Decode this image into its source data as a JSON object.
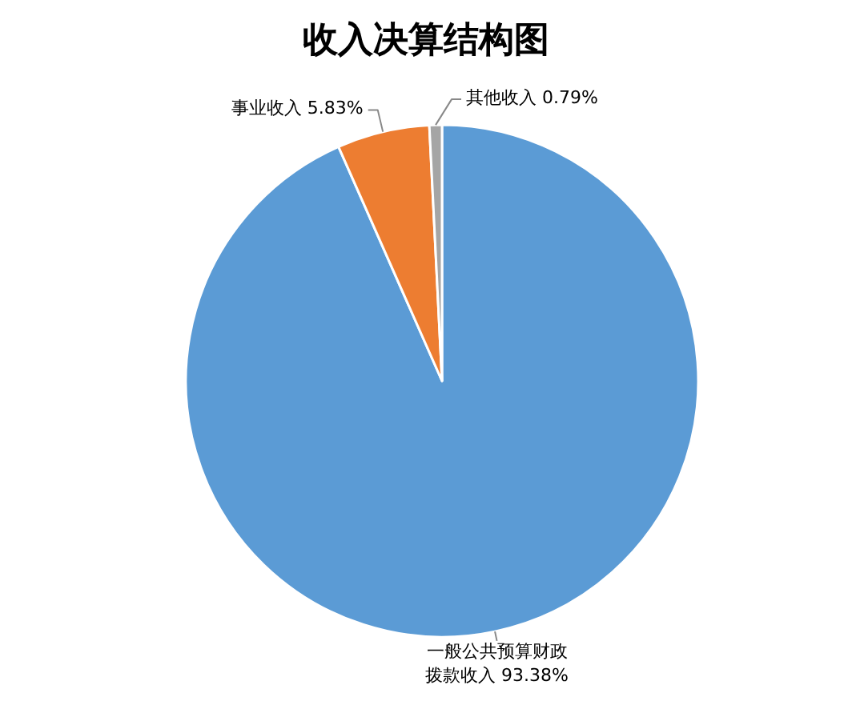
{
  "chart_data": {
    "type": "pie",
    "title": "收入决算结构图",
    "categories": [
      "一般公共预算财政拨款收入",
      "事业收入",
      "其他收入"
    ],
    "values": [
      93.38,
      5.83,
      0.79
    ],
    "value_labels": [
      "93.38%",
      "5.83%",
      "0.79%"
    ],
    "colors": [
      "#5b9bd5",
      "#ed7d31",
      "#a5a5a5"
    ]
  }
}
